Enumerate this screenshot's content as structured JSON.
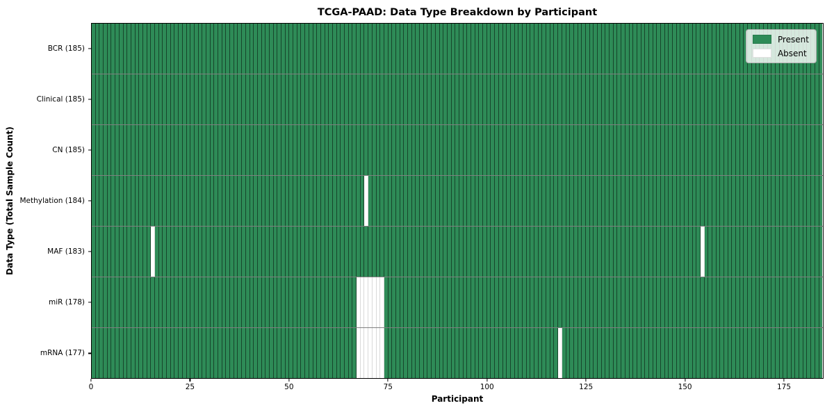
{
  "title": "TCGA-PAAD: Data Type Breakdown by Participant",
  "chart_data": {
    "type": "heatmap",
    "title": "TCGA-PAAD: Data Type Breakdown by Participant",
    "xlabel": "Participant",
    "ylabel": "Data Type (Total Sample Count)",
    "n_participants": 185,
    "x_ticks": [
      0,
      25,
      50,
      75,
      100,
      125,
      150,
      175
    ],
    "grid": true,
    "legend_position": "upper right",
    "colors": {
      "present": "#2e8b57",
      "absent": "#ffffff"
    },
    "legend": [
      {
        "label": "Present",
        "color": "#2e8b57"
      },
      {
        "label": "Absent",
        "color": "#ffffff"
      }
    ],
    "rows": [
      {
        "key": "bcr",
        "label": "BCR (185)",
        "total": 185,
        "absent": []
      },
      {
        "key": "clinical",
        "label": "Clinical (185)",
        "total": 185,
        "absent": []
      },
      {
        "key": "cn",
        "label": "CN (185)",
        "total": 185,
        "absent": []
      },
      {
        "key": "methylation",
        "label": "Methylation (184)",
        "total": 184,
        "absent": [
          69
        ]
      },
      {
        "key": "maf",
        "label": "MAF (183)",
        "total": 183,
        "absent": [
          15,
          154
        ]
      },
      {
        "key": "mir",
        "label": "miR (178)",
        "total": 178,
        "absent": [
          67,
          68,
          69,
          70,
          71,
          72,
          73
        ]
      },
      {
        "key": "mrna",
        "label": "mRNA (177)",
        "total": 177,
        "absent": [
          67,
          68,
          69,
          70,
          71,
          72,
          73,
          118
        ]
      }
    ]
  }
}
